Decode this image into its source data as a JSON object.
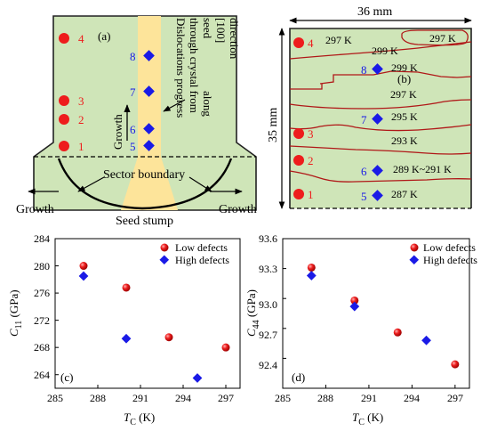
{
  "panel_a": {
    "label": "(a)",
    "numbers_red": [
      "4",
      "3",
      "2",
      "1"
    ],
    "numbers_blue": [
      "8",
      "7",
      "6",
      "5"
    ],
    "vertical_text": [
      "Dislocations progress",
      "through crystal from",
      "seed",
      "along",
      "[100]",
      "direction"
    ],
    "growth_up": "Growth",
    "sector_boundary": "Sector boundary",
    "growth_left": "Growth",
    "growth_right": "Growth",
    "seed_stump": "Seed stump",
    "colors": {
      "green": "#cfe5b8",
      "yellow": "#fde49a",
      "red": "#ee1c1c",
      "blue": "#1a1ae6"
    }
  },
  "panel_b": {
    "label": "(b)",
    "width_label": "36 mm",
    "height_label": "35 mm",
    "numbers_red": [
      "4",
      "3",
      "2",
      "1"
    ],
    "numbers_blue": [
      "8",
      "7",
      "6",
      "5"
    ],
    "isotherms": [
      "297 K",
      "299 K",
      "297 K",
      "299 K",
      "297 K",
      "295 K",
      "293 K",
      "289 K~291 K",
      "287 K"
    ]
  },
  "chart_c": {
    "label": "(c)",
    "ylabel_main": "C",
    "ylabel_sub": "11",
    "ylabel_unit": " (GPa)",
    "xlabel_main": "T",
    "xlabel_sub": "C",
    "xlabel_unit": " (K)",
    "legend_low": "Low defects",
    "legend_high": "High defects",
    "xticks": [
      "285",
      "288",
      "291",
      "294",
      "297"
    ],
    "yticks": [
      "264",
      "268",
      "272",
      "276",
      "280",
      "284"
    ]
  },
  "chart_d": {
    "label": "(d)",
    "ylabel_main": "C",
    "ylabel_sub": "44",
    "ylabel_unit": " (GPa)",
    "xlabel_main": "T",
    "xlabel_sub": "C",
    "xlabel_unit": " (K)",
    "legend_low": "Low defects",
    "legend_high": "High defects",
    "xticks": [
      "285",
      "288",
      "291",
      "294",
      "297"
    ],
    "yticks": [
      "92.4",
      "92.7",
      "93.0",
      "93.3",
      "93.6"
    ]
  },
  "chart_data": [
    {
      "type": "scatter",
      "xlim": [
        285,
        298
      ],
      "ylim": [
        262,
        284
      ],
      "series": [
        {
          "name": "Low defects",
          "x": [
            287,
            290,
            293,
            297
          ],
          "y": [
            280.0,
            276.8,
            269.5,
            268.0
          ]
        },
        {
          "name": "High defects",
          "x": [
            287,
            290,
            295
          ],
          "y": [
            278.5,
            269.3,
            263.5
          ]
        }
      ],
      "legend": "top-right"
    },
    {
      "type": "scatter",
      "xlim": [
        285,
        298
      ],
      "ylim": [
        92.1,
        93.6
      ],
      "series": [
        {
          "name": "Low defects",
          "x": [
            287,
            290,
            293,
            297
          ],
          "y": [
            93.31,
            92.98,
            92.66,
            92.34
          ]
        },
        {
          "name": "High defects",
          "x": [
            287,
            290,
            295
          ],
          "y": [
            93.23,
            92.92,
            92.58
          ]
        }
      ],
      "legend": "top-right"
    }
  ]
}
